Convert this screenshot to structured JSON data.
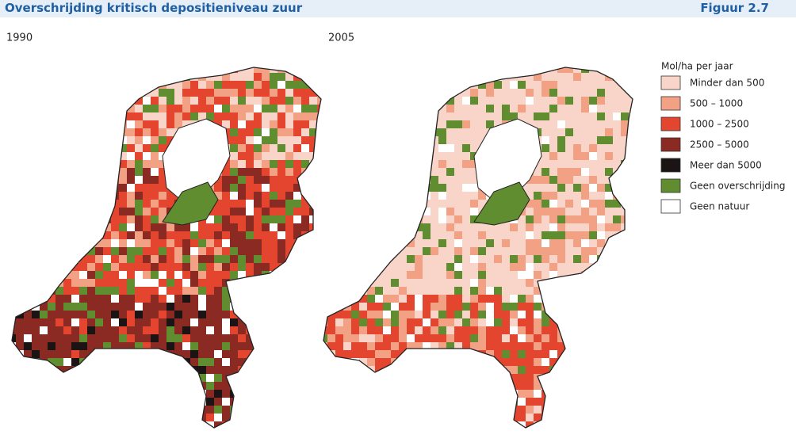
{
  "header": {
    "title": "Overschrijding kritisch depositieniveau zuur",
    "figure": "Figuur 2.7"
  },
  "maps": [
    {
      "label": "1990"
    },
    {
      "label": "2005"
    }
  ],
  "legend": {
    "title": "Mol/ha per jaar",
    "items": [
      {
        "label": "Minder dan 500",
        "color": "#f9d5c9"
      },
      {
        "label": "500 – 1000",
        "color": "#f3a184"
      },
      {
        "label": "1000 – 2500",
        "color": "#e3452f"
      },
      {
        "label": "2500 – 5000",
        "color": "#8b2a22"
      },
      {
        "label": "Meer dan 5000",
        "color": "#1c1414"
      },
      {
        "label": "Geen overschrijding",
        "color": "#5f8d30"
      },
      {
        "label": "Geen natuur",
        "color": "#ffffff"
      }
    ]
  }
}
